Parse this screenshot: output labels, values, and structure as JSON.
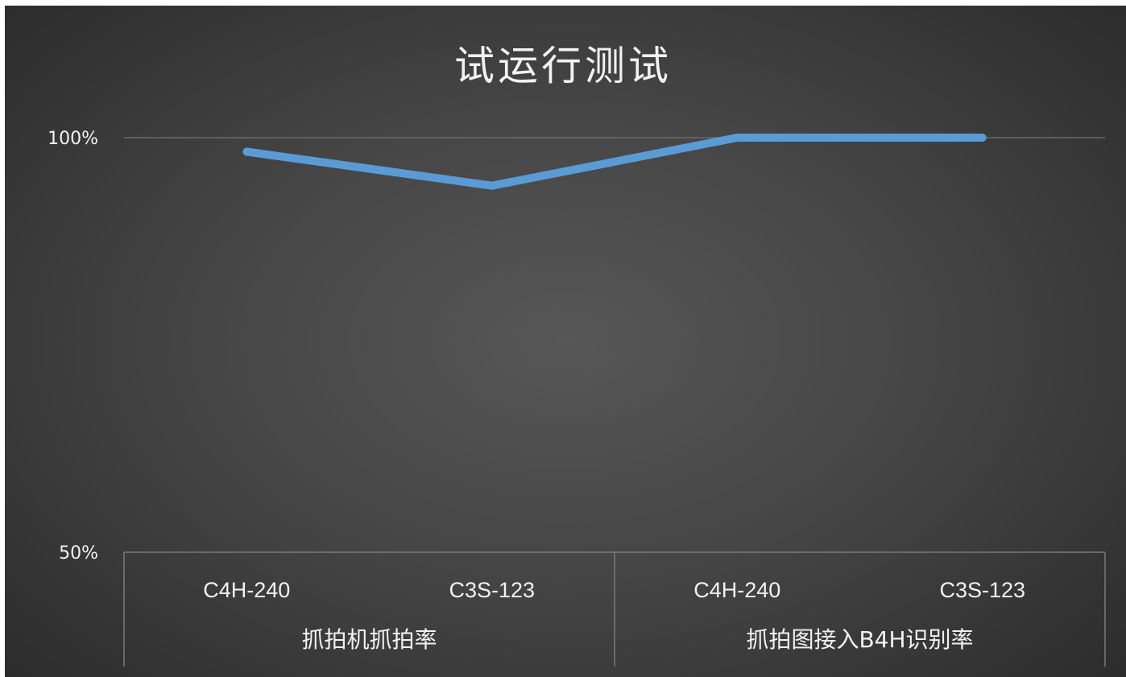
{
  "chart_data": {
    "type": "line",
    "title": "试运行测试",
    "xlabel": "",
    "ylabel": "",
    "ylim": [
      0.5,
      1.0
    ],
    "yticks": [
      {
        "value": 0.5,
        "label": "50%"
      },
      {
        "value": 1.0,
        "label": "100%"
      }
    ],
    "groups": [
      {
        "label": "抓拍机抓拍率",
        "categories": [
          "C4H-240",
          "C3S-123"
        ]
      },
      {
        "label": "抓拍图接入B4H识别率",
        "categories": [
          "C4H-240",
          "C3S-123"
        ]
      }
    ],
    "categories": [
      "C4H-240",
      "C3S-123",
      "C4H-240",
      "C3S-123"
    ],
    "series": [
      {
        "values": [
          0.983,
          0.942,
          1.0,
          1.0
        ],
        "color": "#5b9bd5"
      }
    ],
    "grid": true,
    "legend": "none",
    "colors": {
      "line": "#5b9bd5",
      "text": "#f2f2f2",
      "gridline": "#6a6a6a",
      "axis": "#7a7a7a"
    }
  }
}
